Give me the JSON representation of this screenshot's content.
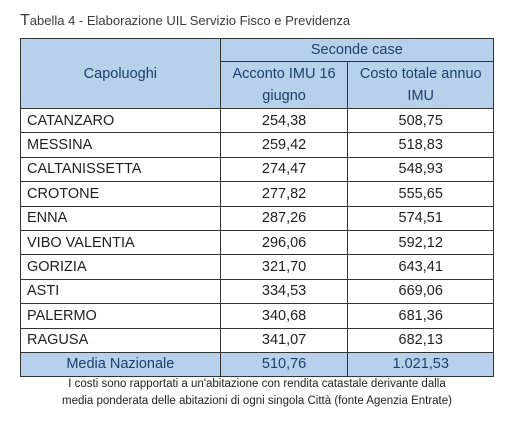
{
  "caption": {
    "initial": "T",
    "rest": "abella 4 - Elaborazione UIL Servizio Fisco e Previdenza"
  },
  "table": {
    "group_header": "Seconde case",
    "col_city": "Capoluoghi",
    "col_acconto_line1": "Acconto IMU 16",
    "col_acconto_line2": "giugno",
    "col_costo_line1": "Costo totale annuo",
    "col_costo_line2": "IMU",
    "rows": [
      {
        "city": "CATANZARO",
        "acconto": "254,38",
        "costo": "508,75"
      },
      {
        "city": "MESSINA",
        "acconto": "259,42",
        "costo": "518,83"
      },
      {
        "city": "CALTANISSETTA",
        "acconto": "274,47",
        "costo": "548,93"
      },
      {
        "city": "CROTONE",
        "acconto": "277,82",
        "costo": "555,65"
      },
      {
        "city": "ENNA",
        "acconto": "287,26",
        "costo": "574,51"
      },
      {
        "city": "VIBO VALENTIA",
        "acconto": "296,06",
        "costo": "592,12"
      },
      {
        "city": "GORIZIA",
        "acconto": "321,70",
        "costo": "643,41"
      },
      {
        "city": "ASTI",
        "acconto": "334,53",
        "costo": "669,06"
      },
      {
        "city": "PALERMO",
        "acconto": "340,68",
        "costo": "681,36"
      },
      {
        "city": "RAGUSA",
        "acconto": "341,07",
        "costo": "682,13"
      }
    ],
    "average": {
      "label": "Media Nazionale",
      "acconto": "510,76",
      "costo": "1.021,53"
    }
  },
  "note": {
    "line1": "I costi sono rapportati a un'abitazione con rendita catastale derivante dalla",
    "line2": "media ponderata delle abitazioni di ogni singola Città (fonte Agenzia Entrate)"
  },
  "colors": {
    "header_bg": "#b7d0ec",
    "header_text": "#1f3f6a",
    "border": "#333333"
  }
}
